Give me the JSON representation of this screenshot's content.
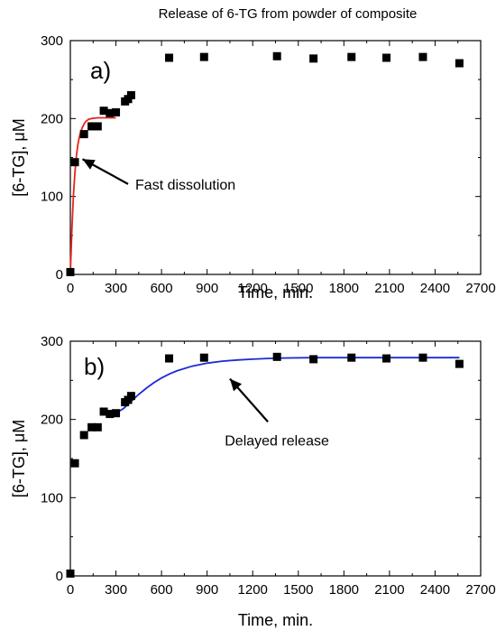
{
  "figure": {
    "title": "Release of 6-TG from powder of composite"
  },
  "chart_data": [
    {
      "type": "scatter",
      "panel_label": "a)",
      "xlabel": "Time, min.",
      "ylabel": "[6-TG], μM",
      "xlim": [
        0,
        2700
      ],
      "ylim": [
        0,
        300
      ],
      "xticks": [
        0,
        300,
        600,
        900,
        1200,
        1500,
        1800,
        2100,
        2400,
        2700
      ],
      "yticks": [
        0,
        100,
        200,
        300
      ],
      "grid": false,
      "series": [
        {
          "marker": "square",
          "color": "#000000",
          "x": [
            0,
            30,
            90,
            140,
            180,
            220,
            260,
            300,
            360,
            380,
            400,
            650,
            880,
            1360,
            1600,
            1850,
            2080,
            2320,
            2560
          ],
          "y": [
            3,
            144,
            180,
            190,
            190,
            210,
            207,
            208,
            222,
            225,
            230,
            278,
            279,
            280,
            277,
            279,
            278,
            279,
            271
          ]
        }
      ],
      "fit": {
        "color": "#e8231a",
        "x": [
          0,
          10,
          20,
          30,
          40,
          50,
          60,
          70,
          80,
          90,
          100,
          120,
          140,
          160,
          180,
          200,
          220,
          240,
          260,
          280,
          300
        ],
        "y": [
          0,
          57,
          101,
          131,
          152,
          167,
          177,
          184,
          189,
          193,
          196,
          199,
          200,
          200.5,
          201,
          201,
          201,
          201,
          201,
          201,
          201
        ]
      },
      "annotation": {
        "text": "Fast dissolution",
        "arrow_from": [
          380,
          116
        ],
        "arrow_to": [
          80,
          148
        ]
      }
    },
    {
      "type": "scatter",
      "panel_label": "b)",
      "xlabel": "Time, min.",
      "ylabel": "[6-TG], μM",
      "xlim": [
        0,
        2700
      ],
      "ylim": [
        0,
        300
      ],
      "xticks": [
        0,
        300,
        600,
        900,
        1200,
        1500,
        1800,
        2100,
        2400,
        2700
      ],
      "yticks": [
        0,
        100,
        200,
        300
      ],
      "grid": false,
      "series": [
        {
          "marker": "square",
          "color": "#000000",
          "x": [
            0,
            30,
            90,
            140,
            180,
            220,
            260,
            300,
            360,
            380,
            400,
            650,
            880,
            1360,
            1600,
            1850,
            2080,
            2320,
            2560
          ],
          "y": [
            3,
            144,
            180,
            190,
            190,
            210,
            207,
            208,
            222,
            225,
            230,
            278,
            279,
            280,
            277,
            279,
            278,
            279,
            271
          ]
        }
      ],
      "fit": {
        "color": "#1a2bd4",
        "x": [
          300,
          350,
          400,
          450,
          500,
          550,
          600,
          650,
          700,
          800,
          900,
          1000,
          1100,
          1200,
          1300,
          1400,
          1600,
          1800,
          2000,
          2200,
          2400,
          2560
        ],
        "y": [
          208,
          214,
          223,
          232,
          240,
          247,
          253,
          258,
          262,
          268,
          272,
          274.5,
          276,
          277,
          278,
          278.5,
          279,
          279,
          279,
          279,
          279,
          279
        ]
      },
      "annotation": {
        "text": "Delayed release",
        "arrow_from": [
          1300,
          197
        ],
        "arrow_to": [
          1050,
          252
        ]
      }
    }
  ]
}
